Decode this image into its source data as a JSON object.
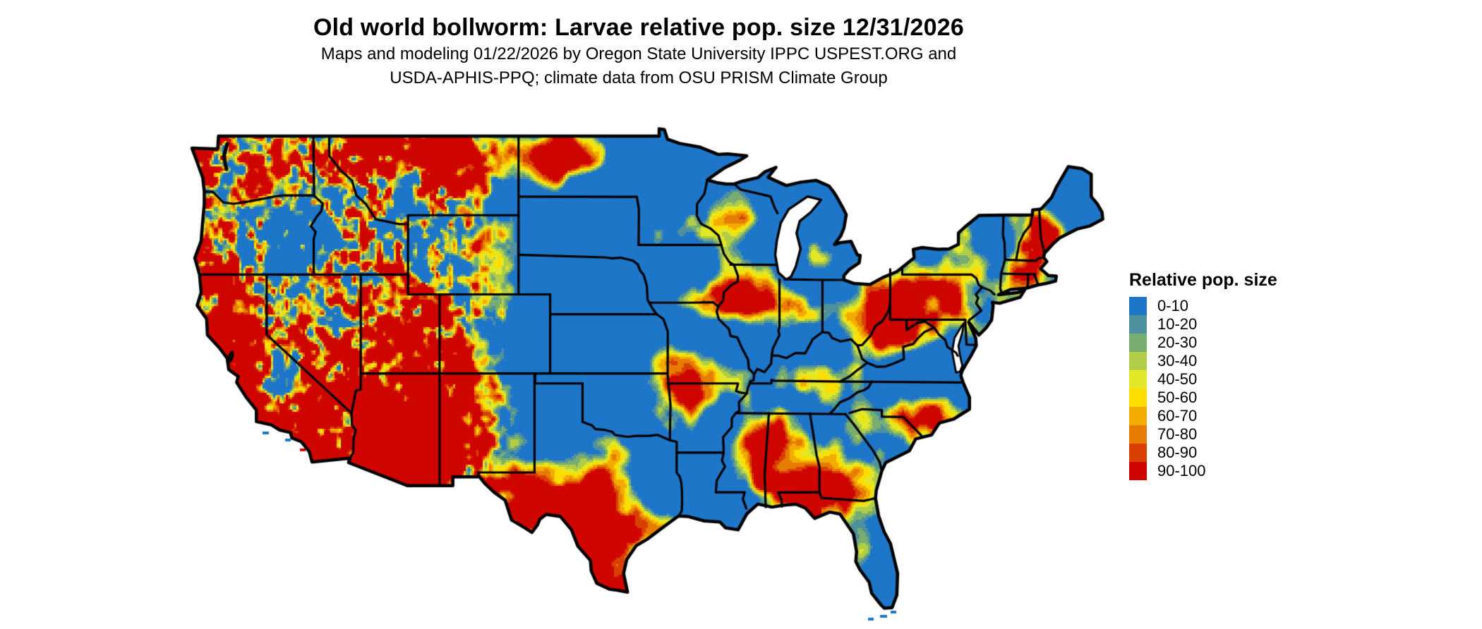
{
  "title": "Old world bollworm: Larvae relative pop. size 12/31/2026",
  "subtitle_line1": "Maps and modeling 01/22/2026 by Oregon State University IPPC USPEST.ORG and",
  "subtitle_line2": "USDA-APHIS-PPQ; climate data from OSU PRISM Climate Group",
  "legend": {
    "title": "Relative pop. size",
    "items": [
      {
        "label": "0-10",
        "color": "#1d76c8"
      },
      {
        "label": "10-20",
        "color": "#4e909e"
      },
      {
        "label": "20-30",
        "color": "#77ad71"
      },
      {
        "label": "30-40",
        "color": "#b1cd48"
      },
      {
        "label": "40-50",
        "color": "#e2e728"
      },
      {
        "label": "50-60",
        "color": "#fbdd00"
      },
      {
        "label": "60-70",
        "color": "#f2ab00"
      },
      {
        "label": "70-80",
        "color": "#e67d00"
      },
      {
        "label": "80-90",
        "color": "#d94000"
      },
      {
        "label": "90-100",
        "color": "#cf0500"
      }
    ]
  },
  "map": {
    "region": "Continental United States",
    "colors": {
      "background": "#ffffff",
      "boundary": "#000000",
      "water": "#ffffff"
    }
  }
}
